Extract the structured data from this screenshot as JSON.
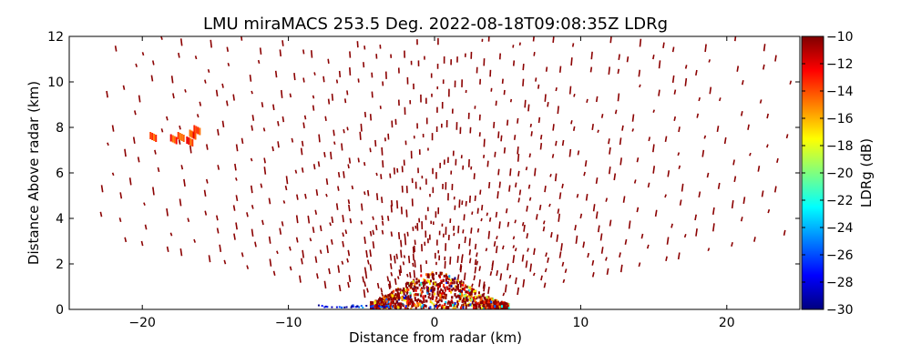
{
  "chart_data": {
    "type": "heatmap",
    "title": "LMU miraMACS 253.5 Deg. 2022-08-18T09:08:35Z  LDRg",
    "xlabel": "Distance from radar (km)",
    "ylabel": "Distance Above radar  (km)",
    "xlim": [
      -25,
      25
    ],
    "ylim": [
      0,
      12
    ],
    "x_ticks": [
      -20,
      -10,
      0,
      10,
      20
    ],
    "y_ticks": [
      0,
      2,
      4,
      6,
      8,
      10,
      12
    ],
    "grid": false,
    "colorbar": {
      "label": "LDRg (dB)",
      "range": [
        -30,
        -10
      ],
      "ticks": [
        -10,
        -12,
        -14,
        -16,
        -18,
        -20,
        -22,
        -24,
        -26,
        -28,
        -30
      ],
      "colormap": "jet"
    },
    "description_values": {
      "dominant_value_dB": -10,
      "near_radar_range_dB": [
        -30,
        -10
      ],
      "max_echo_height_km": 12,
      "horizontal_extent_km": [
        -23,
        24
      ]
    }
  },
  "colors": {
    "dominant_echo": "#8b0000",
    "colormap_stops": [
      "#00007f",
      "#0000ff",
      "#007fff",
      "#00ffff",
      "#7fff7f",
      "#ffff00",
      "#ff7f00",
      "#ff0000",
      "#7f0000"
    ]
  }
}
